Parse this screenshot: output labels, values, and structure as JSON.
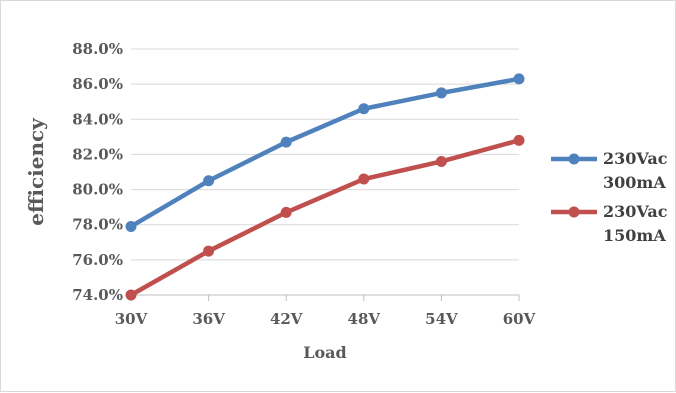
{
  "chart_data": {
    "type": "line",
    "title": "",
    "xlabel": "Load",
    "ylabel": "efficiency",
    "categories": [
      "30V",
      "36V",
      "42V",
      "48V",
      "54V",
      "60V"
    ],
    "ylim": [
      74.0,
      88.0
    ],
    "yticks": [
      74.0,
      76.0,
      78.0,
      80.0,
      82.0,
      84.0,
      86.0,
      88.0
    ],
    "ytick_labels": [
      "74.0%",
      "76.0%",
      "78.0%",
      "80.0%",
      "82.0%",
      "84.0%",
      "86.0%",
      "88.0%"
    ],
    "grid": "horizontal",
    "legend_position": "right",
    "series": [
      {
        "name_lines": [
          "230Vac",
          "300mA"
        ],
        "color": "#4f81bd",
        "values": [
          77.9,
          80.5,
          82.7,
          84.6,
          85.5,
          86.3
        ]
      },
      {
        "name_lines": [
          "230Vac",
          "150mA"
        ],
        "color": "#c0504d",
        "values": [
          74.0,
          76.5,
          78.7,
          80.6,
          81.6,
          82.8
        ]
      }
    ]
  }
}
